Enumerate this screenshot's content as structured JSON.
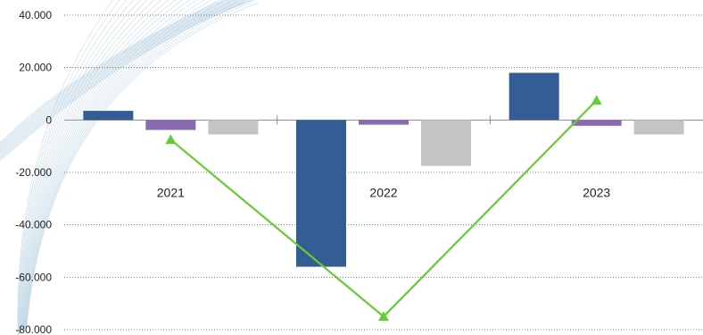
{
  "chart_data": {
    "type": "bar",
    "title": "",
    "xlabel": "",
    "ylabel": "",
    "categories": [
      "2021",
      "2022",
      "2023"
    ],
    "ylim": [
      -80000,
      40000
    ],
    "yticks": [
      40000,
      20000,
      0,
      -20000,
      -40000,
      -60000,
      -80000
    ],
    "ytick_labels": [
      "40.000",
      "20.000",
      "0",
      "-20.000",
      "-40.000",
      "-60.000",
      "-80.000"
    ],
    "grid": true,
    "legend": "none",
    "series": [
      {
        "kind": "bar",
        "color": "#345e93",
        "values": [
          3500,
          -56000,
          18000
        ]
      },
      {
        "kind": "bar",
        "color": "#8a6bb2",
        "values": [
          -3800,
          -1800,
          -2200
        ]
      },
      {
        "kind": "bar",
        "color": "#c4c4c4",
        "values": [
          -5500,
          -17500,
          -5500
        ]
      },
      {
        "kind": "line",
        "color": "#66cc33",
        "marker": "triangle",
        "values": [
          -7500,
          -75000,
          7500
        ]
      }
    ]
  }
}
